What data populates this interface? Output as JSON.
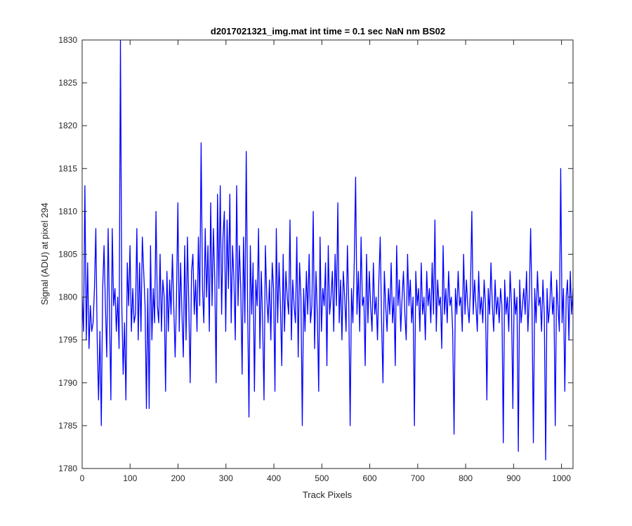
{
  "chart_data": {
    "type": "line",
    "title": "d2017021321_img.mat int time = 0.1 sec  NaN nm BS02",
    "xlabel": "Track Pixels",
    "ylabel": "Signal (ADU) at pixel 294",
    "xlim": [
      0,
      1024
    ],
    "ylim": [
      1780,
      1830
    ],
    "x_ticks": [
      0,
      100,
      200,
      300,
      400,
      500,
      600,
      700,
      800,
      900,
      1000
    ],
    "y_ticks": [
      1780,
      1785,
      1790,
      1795,
      1800,
      1805,
      1810,
      1815,
      1820,
      1825,
      1830
    ],
    "x_tick_labels": [
      "0",
      "100",
      "200",
      "300",
      "400",
      "500",
      "600",
      "700",
      "800",
      "900",
      "1000"
    ],
    "y_tick_labels": [
      "1780",
      "1785",
      "1790",
      "1795",
      "1800",
      "1805",
      "1810",
      "1815",
      "1820",
      "1825",
      "1830"
    ],
    "grid": false,
    "line_color": "#0000ff",
    "series": [
      {
        "values": [
          1800,
          1796,
          1813,
          1795,
          1804,
          1794,
          1799,
          1796,
          1797,
          1801,
          1808,
          1795,
          1788,
          1796,
          1785,
          1801,
          1806,
          1799,
          1793,
          1808,
          1798,
          1788,
          1808,
          1799,
          1801,
          1796,
          1800,
          1794,
          1830,
          1799,
          1791,
          1797,
          1788,
          1804,
          1799,
          1806,
          1796,
          1801,
          1797,
          1798,
          1808,
          1795,
          1804,
          1796,
          1807,
          1803,
          1799,
          1787,
          1801,
          1787,
          1806,
          1795,
          1801,
          1797,
          1810,
          1799,
          1797,
          1805,
          1796,
          1802,
          1800,
          1789,
          1803,
          1796,
          1802,
          1798,
          1805,
          1799,
          1793,
          1800,
          1811,
          1796,
          1804,
          1798,
          1793,
          1806,
          1795,
          1807,
          1799,
          1790,
          1803,
          1805,
          1798,
          1802,
          1796,
          1807,
          1799,
          1818,
          1801,
          1797,
          1808,
          1800,
          1806,
          1796,
          1811,
          1799,
          1808,
          1802,
          1790,
          1812,
          1801,
          1813,
          1798,
          1807,
          1810,
          1796,
          1809,
          1801,
          1812,
          1797,
          1806,
          1802,
          1795,
          1813,
          1799,
          1806,
          1801,
          1791,
          1807,
          1797,
          1817,
          1799,
          1786,
          1806,
          1798,
          1804,
          1789,
          1802,
          1799,
          1808,
          1794,
          1803,
          1797,
          1788,
          1806,
          1800,
          1797,
          1802,
          1795,
          1804,
          1801,
          1789,
          1808,
          1797,
          1804,
          1799,
          1792,
          1805,
          1796,
          1803,
          1800,
          1798,
          1809,
          1795,
          1802,
          1799,
          1797,
          1807,
          1793,
          1804,
          1800,
          1785,
          1801,
          1796,
          1803,
          1798,
          1805,
          1797,
          1799,
          1810,
          1794,
          1803,
          1798,
          1789,
          1807,
          1796,
          1801,
          1799,
          1804,
          1792,
          1806,
          1798,
          1800,
          1803,
          1796,
          1805,
          1799,
          1811,
          1797,
          1802,
          1795,
          1803,
          1800,
          1796,
          1806,
          1799,
          1785,
          1801,
          1797,
          1804,
          1814,
          1798,
          1803,
          1796,
          1807,
          1799,
          1800,
          1792,
          1805,
          1797,
          1803,
          1799,
          1796,
          1804,
          1798,
          1800,
          1795,
          1802,
          1807,
          1797,
          1790,
          1803,
          1799,
          1796,
          1801,
          1798,
          1804,
          1797,
          1800,
          1792,
          1806,
          1799,
          1802,
          1796,
          1800,
          1803,
          1798,
          1795,
          1805,
          1799,
          1802,
          1797,
          1800,
          1785,
          1803,
          1799,
          1801,
          1796,
          1804,
          1798,
          1800,
          1795,
          1803,
          1799,
          1801,
          1797,
          1804,
          1798,
          1809,
          1796,
          1802,
          1799,
          1800,
          1794,
          1806,
          1798,
          1801,
          1797,
          1803,
          1799,
          1800,
          1796,
          1784,
          1801,
          1798,
          1803,
          1799,
          1800,
          1796,
          1805,
          1798,
          1802,
          1799,
          1797,
          1801,
          1810,
          1798,
          1802,
          1799,
          1796,
          1803,
          1798,
          1800,
          1797,
          1802,
          1799,
          1788,
          1801,
          1798,
          1804,
          1799,
          1796,
          1802,
          1798,
          1800,
          1797,
          1801,
          1799,
          1783,
          1802,
          1798,
          1800,
          1796,
          1803,
          1799,
          1787,
          1801,
          1798,
          1800,
          1782,
          1802,
          1797,
          1799,
          1801,
          1798,
          1803,
          1796,
          1800,
          1808,
          1799,
          1783,
          1801,
          1797,
          1803,
          1799,
          1800,
          1796,
          1802,
          1798,
          1781,
          1801,
          1797,
          1799,
          1803,
          1798,
          1800,
          1785,
          1802,
          1799,
          1796,
          1815,
          1797,
          1801,
          1789,
          1800,
          1802,
          1795,
          1803,
          1798,
          1801
        ]
      }
    ]
  }
}
